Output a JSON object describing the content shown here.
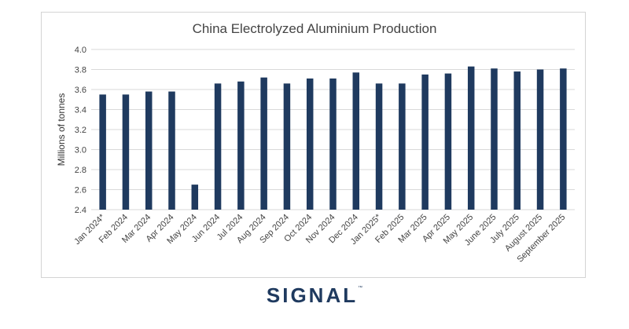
{
  "chart_data": {
    "type": "bar",
    "title": "China Electrolyzed Aluminium Production",
    "xlabel": "",
    "ylabel": "Millions of tonnes",
    "ylim": [
      2.4,
      4.0
    ],
    "yticks": [
      "2.4",
      "2.6",
      "2.8",
      "3.0",
      "3.2",
      "3.4",
      "3.6",
      "3.8",
      "4.0"
    ],
    "categories": [
      "Jan 2024*",
      "Feb 2024",
      "Mar 2024",
      "Apr 2024",
      "May 2024",
      "Jun 2024",
      "Jul 2024",
      "Aug 2024",
      "Sep 2024",
      "Oct 2024",
      "Nov 2024",
      "Dec 2024",
      "Jan 2025*",
      "Feb 2025",
      "Mar 2025",
      "Apr 2025",
      "May 2025",
      "June 2025",
      "July 2025",
      "August 2025",
      "September 2025"
    ],
    "values": [
      3.55,
      3.55,
      3.58,
      3.58,
      2.65,
      3.66,
      3.68,
      3.72,
      3.66,
      3.71,
      3.71,
      3.77,
      3.66,
      3.66,
      3.75,
      3.76,
      3.83,
      3.81,
      3.78,
      3.8,
      3.81
    ],
    "grid": true,
    "bar_color": "#1f3a5f"
  },
  "branding": {
    "logo_text": "SIGNAL",
    "trademark": "™"
  }
}
